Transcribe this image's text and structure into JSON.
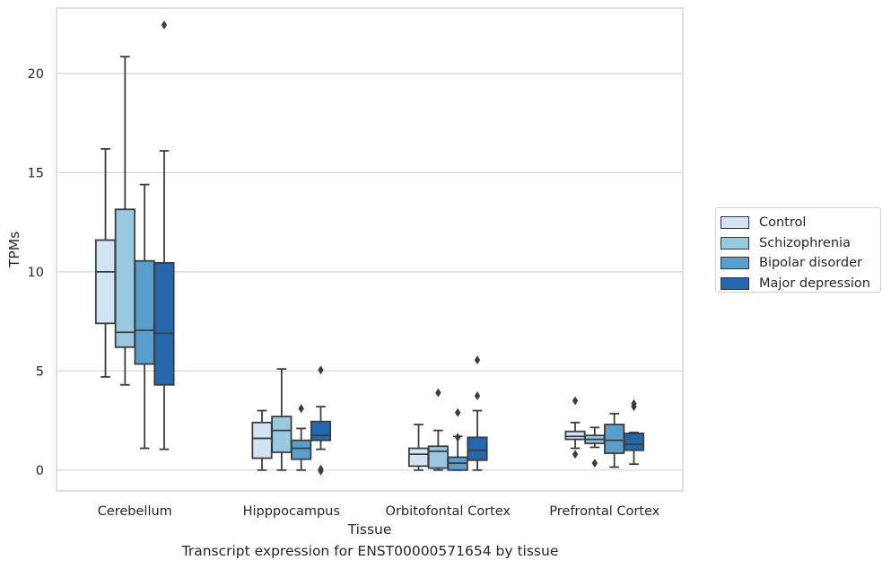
{
  "chart_data": {
    "type": "box",
    "title": "",
    "caption": "Transcript expression for ENST00000571654 by tissue",
    "xlabel": "Tissue",
    "ylabel": "TPMs",
    "ylim": [
      -1.05,
      23.3
    ],
    "yticks": [
      0,
      5,
      10,
      15,
      20
    ],
    "grid": "horizontal",
    "legend_position": "right",
    "categories": [
      "Cerebellum",
      "Hipppocampus",
      "Orbitofontal Cortex",
      "Prefrontal Cortex"
    ],
    "series": [
      {
        "name": "Control",
        "color": "#d2e3f3",
        "boxes": [
          {
            "whisker_low": 4.7,
            "q1": 7.4,
            "median": 10.0,
            "q3": 11.6,
            "whisker_high": 16.2,
            "outliers": []
          },
          {
            "whisker_low": 0.0,
            "q1": 0.6,
            "median": 1.6,
            "q3": 2.4,
            "whisker_high": 3.0,
            "outliers": []
          },
          {
            "whisker_low": 0.0,
            "q1": 0.2,
            "median": 0.8,
            "q3": 1.1,
            "whisker_high": 2.3,
            "outliers": []
          },
          {
            "whisker_low": 1.1,
            "q1": 1.55,
            "median": 1.7,
            "q3": 1.95,
            "whisker_high": 2.4,
            "outliers": [
              3.5,
              0.8
            ]
          }
        ]
      },
      {
        "name": "Schizophrenia",
        "color": "#9ac8e0",
        "boxes": [
          {
            "whisker_low": 4.3,
            "q1": 6.2,
            "median": 6.95,
            "q3": 13.15,
            "whisker_high": 20.85,
            "outliers": []
          },
          {
            "whisker_low": 0.0,
            "q1": 0.9,
            "median": 2.0,
            "q3": 2.7,
            "whisker_high": 5.1,
            "outliers": []
          },
          {
            "whisker_low": 0.0,
            "q1": 0.1,
            "median": 0.95,
            "q3": 1.2,
            "whisker_high": 2.0,
            "outliers": [
              3.9
            ]
          },
          {
            "whisker_low": 1.15,
            "q1": 1.35,
            "median": 1.55,
            "q3": 1.75,
            "whisker_high": 2.15,
            "outliers": [
              0.35
            ]
          }
        ]
      },
      {
        "name": "Bipolar disorder",
        "color": "#5a9ecc",
        "boxes": [
          {
            "whisker_low": 1.1,
            "q1": 5.35,
            "median": 7.05,
            "q3": 10.55,
            "whisker_high": 14.4,
            "outliers": []
          },
          {
            "whisker_low": 0.0,
            "q1": 0.55,
            "median": 1.1,
            "q3": 1.5,
            "whisker_high": 2.1,
            "outliers": [
              3.1
            ]
          },
          {
            "whisker_low": 0.0,
            "q1": 0.0,
            "median": 0.35,
            "q3": 0.65,
            "whisker_high": 1.7,
            "outliers": [
              2.9,
              1.65
            ]
          },
          {
            "whisker_low": 0.15,
            "q1": 0.85,
            "median": 1.5,
            "q3": 2.3,
            "whisker_high": 2.85,
            "outliers": []
          }
        ]
      },
      {
        "name": "Major depression",
        "color": "#2467ac",
        "boxes": [
          {
            "whisker_low": 1.05,
            "q1": 4.3,
            "median": 6.9,
            "q3": 10.45,
            "whisker_high": 16.1,
            "outliers": [
              22.45
            ]
          },
          {
            "whisker_low": 1.05,
            "q1": 1.5,
            "median": 1.75,
            "q3": 2.45,
            "whisker_high": 3.2,
            "outliers": [
              5.05,
              0.05,
              -0.05
            ]
          },
          {
            "whisker_low": 0.0,
            "q1": 0.5,
            "median": 1.0,
            "q3": 1.65,
            "whisker_high": 3.0,
            "outliers": [
              5.55,
              3.75
            ]
          },
          {
            "whisker_low": 0.3,
            "q1": 1.0,
            "median": 1.3,
            "q3": 1.85,
            "whisker_high": 1.9,
            "outliers": [
              3.35,
              3.2
            ]
          }
        ]
      }
    ]
  }
}
